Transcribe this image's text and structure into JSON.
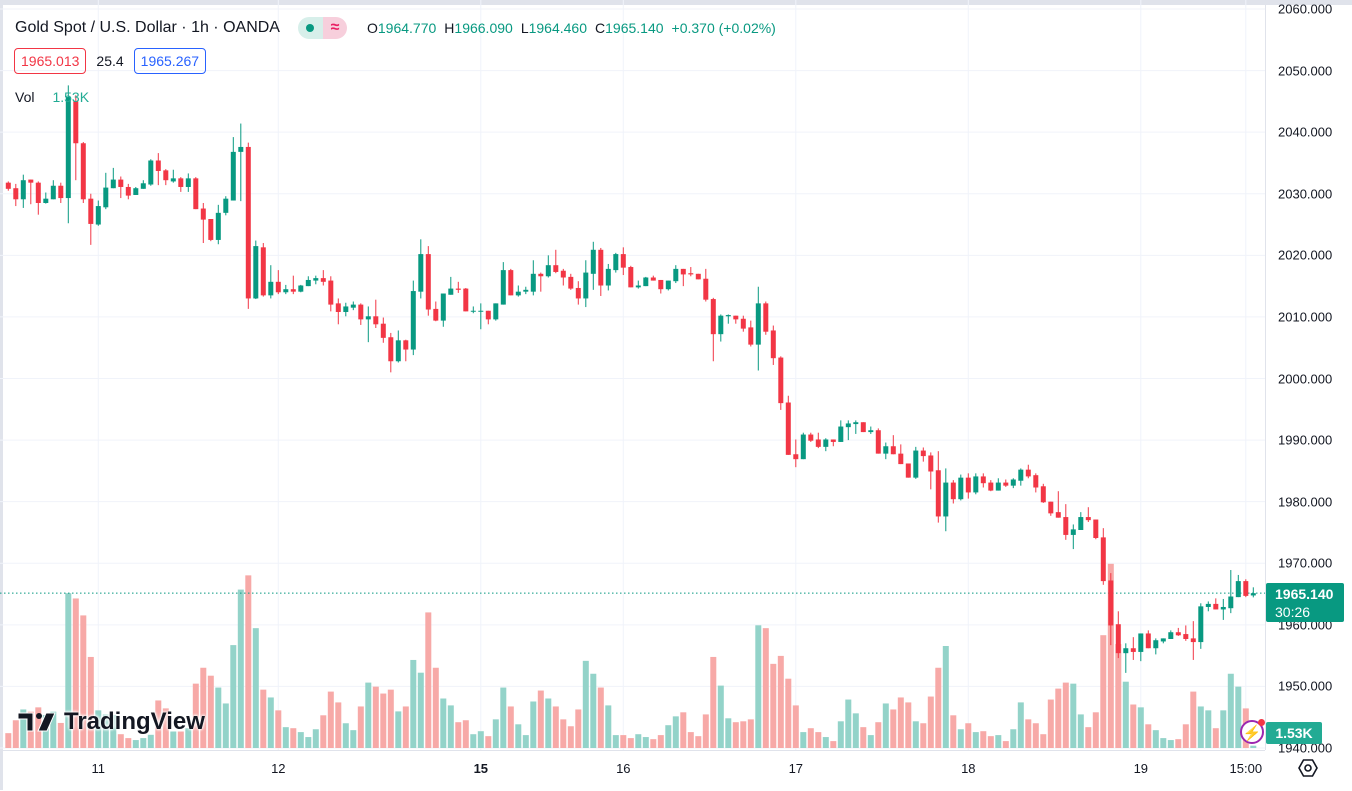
{
  "legend": {
    "title": "Gold Spot / U.S. Dollar · 1h · OANDA",
    "ohlc": {
      "o_key": "O",
      "o": "1964.770",
      "h_key": "H",
      "h": "1966.090",
      "l_key": "L",
      "l": "1964.460",
      "c_key": "C",
      "c": "1965.140",
      "change": "+0.370 (+0.02%)"
    },
    "sell_price": "1965.013",
    "spread": "25.4",
    "buy_price": "1965.267",
    "vol_label": "Vol",
    "vol_value": "1.53K"
  },
  "price_tag": {
    "price": "1965.140",
    "countdown": "30:26"
  },
  "volume_tag": "1.53K",
  "logo": "TradingView",
  "colors": {
    "up": "#089981",
    "down": "#f23645",
    "vol_up": "#93d3c9",
    "vol_down": "#f7a9a7",
    "grid": "#f0f3fa",
    "last_price": "#089981"
  },
  "icons": [
    "market-status-dot-icon",
    "data-delay-icon",
    "lightning-icon",
    "settings-gear-icon",
    "tradingview-logo-icon"
  ],
  "chart_data": {
    "type": "candlestick",
    "symbol": "Gold Spot / U.S. Dollar",
    "interval": "1h",
    "ylim": [
      1940,
      2060
    ],
    "y_tick_labels": [
      "2060.000",
      "2050.000",
      "2040.000",
      "2030.000",
      "2020.000",
      "2010.000",
      "2000.000",
      "1990.000",
      "1980.000",
      "1970.000",
      "1960.000",
      "1950.000",
      "1940.000"
    ],
    "x_tick_labels": [
      {
        "label": "11",
        "index": 12,
        "bold": false
      },
      {
        "label": "12",
        "index": 36,
        "bold": false
      },
      {
        "label": "15",
        "index": 63,
        "bold": true
      },
      {
        "label": "16",
        "index": 82,
        "bold": false
      },
      {
        "label": "17",
        "index": 105,
        "bold": false
      },
      {
        "label": "18",
        "index": 128,
        "bold": false
      },
      {
        "label": "19",
        "index": 151,
        "bold": false
      },
      {
        "label": "15:00",
        "index": 165,
        "bold": false
      }
    ],
    "last_price": 1965.14,
    "grid": true,
    "ohlc": [
      [
        2031.8,
        2032.0,
        2030.5,
        2030.8
      ],
      [
        2030.9,
        2031.6,
        2028.0,
        2029.1
      ],
      [
        2029.1,
        2033.1,
        2027.7,
        2032.2
      ],
      [
        2032.3,
        2032.3,
        2028.3,
        2031.8
      ],
      [
        2031.8,
        2032.0,
        2026.6,
        2028.5
      ],
      [
        2028.5,
        2030.2,
        2028.4,
        2029.2
      ],
      [
        2029.1,
        2032.2,
        2029.1,
        2031.3
      ],
      [
        2031.3,
        2031.8,
        2028.5,
        2029.3
      ],
      [
        2029.3,
        2047.6,
        2025.2,
        2045.7
      ],
      [
        2045.0,
        2046.0,
        2032.2,
        2038.2
      ],
      [
        2038.2,
        2038.4,
        2028.5,
        2029.1
      ],
      [
        2029.2,
        2030.0,
        2021.7,
        2025.1
      ],
      [
        2025.0,
        2028.9,
        2024.8,
        2028.0
      ],
      [
        2027.8,
        2033.4,
        2027.5,
        2031.0
      ],
      [
        2030.9,
        2034.2,
        2030.9,
        2032.3
      ],
      [
        2032.3,
        2032.8,
        2029.3,
        2031.1
      ],
      [
        2031.1,
        2031.6,
        2029.1,
        2029.7
      ],
      [
        2029.8,
        2031.1,
        2029.8,
        2030.9
      ],
      [
        2030.8,
        2032.2,
        2030.8,
        2031.7
      ],
      [
        2031.5,
        2035.6,
        2031.3,
        2035.4
      ],
      [
        2035.4,
        2036.6,
        2031.4,
        2033.7
      ],
      [
        2033.8,
        2034.0,
        2031.4,
        2032.2
      ],
      [
        2032.0,
        2033.9,
        2031.8,
        2032.5
      ],
      [
        2032.5,
        2032.7,
        2030.3,
        2031.1
      ],
      [
        2031.1,
        2033.3,
        2030.3,
        2032.5
      ],
      [
        2032.5,
        2032.7,
        2027.5,
        2027.5
      ],
      [
        2027.6,
        2028.5,
        2022.0,
        2025.8
      ],
      [
        2025.9,
        2025.9,
        2022.3,
        2022.5
      ],
      [
        2022.5,
        2028.2,
        2021.8,
        2026.9
      ],
      [
        2026.9,
        2029.6,
        2026.5,
        2029.2
      ],
      [
        2028.9,
        2039.2,
        2028.9,
        2036.8
      ],
      [
        2036.8,
        2041.4,
        2028.8,
        2037.6
      ],
      [
        2037.6,
        2038.3,
        2011.3,
        2013.0
      ],
      [
        2013.0,
        2022.4,
        2012.9,
        2021.5
      ],
      [
        2021.3,
        2022.0,
        2013.3,
        2013.5
      ],
      [
        2013.5,
        2018.4,
        2013.0,
        2015.7
      ],
      [
        2015.7,
        2017.6,
        2013.7,
        2014.0
      ],
      [
        2014.0,
        2015.2,
        2013.7,
        2014.5
      ],
      [
        2014.5,
        2016.7,
        2013.7,
        2014.1
      ],
      [
        2014.1,
        2015.2,
        2014.0,
        2015.1
      ],
      [
        2015.0,
        2016.6,
        2015.0,
        2016.0
      ],
      [
        2015.9,
        2016.7,
        2015.3,
        2016.3
      ],
      [
        2016.3,
        2017.6,
        2015.1,
        2015.7
      ],
      [
        2015.9,
        2016.6,
        2010.9,
        2012.0
      ],
      [
        2012.2,
        2013.0,
        2008.8,
        2010.8
      ],
      [
        2010.8,
        2012.3,
        2010.1,
        2011.7
      ],
      [
        2011.5,
        2012.5,
        2011.1,
        2012.0
      ],
      [
        2012.0,
        2012.2,
        2008.7,
        2009.6
      ],
      [
        2009.6,
        2011.7,
        2005.9,
        2010.1
      ],
      [
        2010.1,
        2012.8,
        2008.2,
        2008.8
      ],
      [
        2008.9,
        2009.9,
        2005.8,
        2006.6
      ],
      [
        2006.7,
        2007.4,
        2001.0,
        2002.8
      ],
      [
        2002.8,
        2007.8,
        2002.6,
        2006.2
      ],
      [
        2006.2,
        2006.3,
        2002.8,
        2004.7
      ],
      [
        2004.7,
        2015.9,
        2003.8,
        2014.2
      ],
      [
        2014.1,
        2022.6,
        2013.0,
        2020.2
      ],
      [
        2020.2,
        2021.5,
        2010.2,
        2011.2
      ],
      [
        2011.3,
        2012.5,
        2009.3,
        2009.4
      ],
      [
        2009.4,
        2013.8,
        2008.4,
        2013.8
      ],
      [
        2013.6,
        2016.5,
        2013.6,
        2014.6
      ],
      [
        2014.6,
        2015.7,
        2013.9,
        2014.4
      ],
      [
        2014.6,
        2014.7,
        2010.9,
        2010.9
      ],
      [
        2010.9,
        2011.7,
        2010.6,
        2011.0
      ],
      [
        2011.0,
        2012.2,
        2008.0,
        2011.0
      ],
      [
        2011.0,
        2011.0,
        2008.8,
        2009.6
      ],
      [
        2009.6,
        2012.2,
        2009.4,
        2012.2
      ],
      [
        2012.0,
        2018.9,
        2012.0,
        2017.6
      ],
      [
        2017.6,
        2017.8,
        2013.5,
        2013.5
      ],
      [
        2013.5,
        2015.1,
        2013.3,
        2014.1
      ],
      [
        2014.1,
        2014.9,
        2013.7,
        2014.4
      ],
      [
        2014.1,
        2019.2,
        2013.5,
        2017.0
      ],
      [
        2017.0,
        2017.2,
        2014.1,
        2016.6
      ],
      [
        2016.6,
        2020.0,
        2016.4,
        2018.4
      ],
      [
        2018.4,
        2020.9,
        2017.1,
        2017.3
      ],
      [
        2017.5,
        2017.8,
        2015.1,
        2016.4
      ],
      [
        2016.5,
        2017.0,
        2014.4,
        2014.6
      ],
      [
        2014.7,
        2015.8,
        2012.0,
        2013.0
      ],
      [
        2013.0,
        2019.2,
        2011.6,
        2017.2
      ],
      [
        2017.0,
        2022.2,
        2014.4,
        2020.9
      ],
      [
        2020.9,
        2021.2,
        2013.4,
        2015.1
      ],
      [
        2015.1,
        2018.6,
        2014.3,
        2017.8
      ],
      [
        2017.6,
        2020.4,
        2017.2,
        2020.2
      ],
      [
        2020.2,
        2021.3,
        2016.8,
        2018.0
      ],
      [
        2018.1,
        2018.3,
        2014.8,
        2014.8
      ],
      [
        2014.8,
        2015.9,
        2014.6,
        2015.1
      ],
      [
        2015.0,
        2016.5,
        2015.0,
        2016.4
      ],
      [
        2016.4,
        2016.7,
        2015.9,
        2015.9
      ],
      [
        2016.0,
        2016.0,
        2013.8,
        2014.5
      ],
      [
        2014.5,
        2015.9,
        2014.3,
        2015.9
      ],
      [
        2015.8,
        2018.4,
        2015.5,
        2017.8
      ],
      [
        2017.8,
        2017.8,
        2015.0,
        2016.9
      ],
      [
        2017.1,
        2018.1,
        2016.6,
        2016.9
      ],
      [
        2017.0,
        2017.0,
        2016.1,
        2016.1
      ],
      [
        2016.2,
        2017.8,
        2012.5,
        2012.8
      ],
      [
        2012.9,
        2013.1,
        2002.8,
        2007.2
      ],
      [
        2007.2,
        2010.4,
        2006.0,
        2010.2
      ],
      [
        2010.1,
        2010.4,
        2008.9,
        2010.3
      ],
      [
        2010.2,
        2010.2,
        2008.9,
        2009.6
      ],
      [
        2009.7,
        2010.2,
        2007.6,
        2008.1
      ],
      [
        2008.3,
        2009.4,
        2005.2,
        2005.5
      ],
      [
        2005.5,
        2014.9,
        2001.3,
        2012.2
      ],
      [
        2012.2,
        2012.5,
        2007.1,
        2007.6
      ],
      [
        2007.8,
        2008.6,
        2002.2,
        2003.3
      ],
      [
        2003.4,
        2003.6,
        1994.9,
        1996.0
      ],
      [
        1996.1,
        1997.2,
        1987.6,
        1987.6
      ],
      [
        1987.7,
        1990.1,
        1985.6,
        1986.9
      ],
      [
        1986.9,
        1991.2,
        1986.9,
        1990.9
      ],
      [
        1990.9,
        1991.2,
        1989.7,
        1989.9
      ],
      [
        1990.1,
        1991.2,
        1988.7,
        1988.9
      ],
      [
        1988.9,
        1990.3,
        1988.2,
        1990.1
      ],
      [
        1990.1,
        1990.1,
        1989.0,
        1989.7
      ],
      [
        1989.7,
        1993.2,
        1989.7,
        1992.2
      ],
      [
        1992.1,
        1993.2,
        1990.0,
        1992.7
      ],
      [
        1992.6,
        1993.2,
        1991.0,
        1992.9
      ],
      [
        1992.9,
        1992.9,
        1991.3,
        1991.3
      ],
      [
        1991.3,
        1992.2,
        1991.0,
        1991.6
      ],
      [
        1991.6,
        1991.9,
        1987.8,
        1987.8
      ],
      [
        1987.8,
        1989.6,
        1986.9,
        1989.0
      ],
      [
        1989.0,
        1990.8,
        1987.7,
        1987.7
      ],
      [
        1987.8,
        1989.3,
        1986.1,
        1986.1
      ],
      [
        1986.2,
        1986.2,
        1983.9,
        1983.9
      ],
      [
        1983.9,
        1988.9,
        1983.7,
        1988.3
      ],
      [
        1988.3,
        1988.8,
        1986.5,
        1987.4
      ],
      [
        1987.5,
        1988.0,
        1982.0,
        1984.9
      ],
      [
        1985.1,
        1988.2,
        1976.6,
        1977.6
      ],
      [
        1977.6,
        1985.4,
        1975.2,
        1983.1
      ],
      [
        1983.1,
        1983.5,
        1979.7,
        1980.4
      ],
      [
        1980.4,
        1984.4,
        1980.2,
        1983.9
      ],
      [
        1983.9,
        1984.6,
        1980.5,
        1981.5
      ],
      [
        1981.5,
        1984.6,
        1981.2,
        1984.1
      ],
      [
        1984.1,
        1984.6,
        1982.3,
        1983.0
      ],
      [
        1983.1,
        1983.5,
        1981.7,
        1981.8
      ],
      [
        1981.8,
        1983.8,
        1981.8,
        1983.1
      ],
      [
        1983.1,
        1983.6,
        1982.4,
        1982.6
      ],
      [
        1982.6,
        1983.8,
        1982.2,
        1983.6
      ],
      [
        1983.4,
        1985.4,
        1982.6,
        1985.2
      ],
      [
        1985.2,
        1986.0,
        1983.8,
        1984.1
      ],
      [
        1984.3,
        1984.6,
        1981.5,
        1982.3
      ],
      [
        1982.5,
        1982.9,
        1979.8,
        1979.9
      ],
      [
        1980.0,
        1980.0,
        1977.7,
        1978.1
      ],
      [
        1978.3,
        1981.7,
        1977.4,
        1977.4
      ],
      [
        1977.5,
        1979.6,
        1973.8,
        1974.6
      ],
      [
        1974.6,
        1976.3,
        1972.3,
        1975.5
      ],
      [
        1975.4,
        1978.3,
        1975.4,
        1977.5
      ],
      [
        1977.5,
        1979.1,
        1976.7,
        1977.0
      ],
      [
        1977.1,
        1977.1,
        1973.9,
        1974.1
      ],
      [
        1974.2,
        1975.7,
        1966.5,
        1967.1
      ],
      [
        1967.2,
        1968.4,
        1956.7,
        1959.9
      ],
      [
        1960.1,
        1962.2,
        1954.6,
        1955.4
      ],
      [
        1955.4,
        1957.0,
        1952.2,
        1956.2
      ],
      [
        1956.2,
        1958.0,
        1954.3,
        1955.6
      ],
      [
        1955.6,
        1958.6,
        1954.1,
        1958.6
      ],
      [
        1958.6,
        1959.1,
        1956.2,
        1956.2
      ],
      [
        1956.2,
        1957.8,
        1955.2,
        1957.5
      ],
      [
        1957.3,
        1957.8,
        1957.0,
        1957.8
      ],
      [
        1957.7,
        1959.1,
        1957.7,
        1958.8
      ],
      [
        1958.8,
        1959.5,
        1958.2,
        1958.3
      ],
      [
        1958.5,
        1959.9,
        1957.4,
        1957.7
      ],
      [
        1957.8,
        1960.6,
        1954.3,
        1957.2
      ],
      [
        1957.2,
        1963.5,
        1956.1,
        1963.0
      ],
      [
        1962.9,
        1963.8,
        1962.2,
        1963.4
      ],
      [
        1963.4,
        1964.3,
        1962.5,
        1962.5
      ],
      [
        1962.5,
        1964.2,
        1960.8,
        1962.9
      ],
      [
        1962.7,
        1968.9,
        1961.9,
        1964.6
      ],
      [
        1964.5,
        1968.1,
        1964.5,
        1967.1
      ],
      [
        1967.1,
        1967.4,
        1964.5,
        1964.7
      ],
      [
        1964.77,
        1966.09,
        1964.46,
        1965.14
      ]
    ],
    "volume_k": [
      9.9,
      18.5,
      25.7,
      24.2,
      27.1,
      22.0,
      24.2,
      16.7,
      103.2,
      99.7,
      88.4,
      60.7,
      25.1,
      22.4,
      22.0,
      9.2,
      6.6,
      5.3,
      6.6,
      8.8,
      31.7,
      26.4,
      11.0,
      11.0,
      13.2,
      42.9,
      53.5,
      48.2,
      40.3,
      29.7,
      68.6,
      105.6,
      115.1,
      79.9,
      38.9,
      33.7,
      25.1,
      13.9,
      13.2,
      10.6,
      7.3,
      12.5,
      21.8,
      37.6,
      30.4,
      16.5,
      11.9,
      27.7,
      43.6,
      40.9,
      36.3,
      38.9,
      24.4,
      27.7,
      58.7,
      50.2,
      90.4,
      53.5,
      33.0,
      28.4,
      17.2,
      18.5,
      9.2,
      11.2,
      7.9,
      19.1,
      40.3,
      27.7,
      15.8,
      8.6,
      31.0,
      38.3,
      33.0,
      27.7,
      19.1,
      14.5,
      25.7,
      58.1,
      49.5,
      40.3,
      28.4,
      8.6,
      8.6,
      6.6,
      9.2,
      7.3,
      5.9,
      8.6,
      15.2,
      21.1,
      23.8,
      10.6,
      7.9,
      22.4,
      60.7,
      41.6,
      19.8,
      17.2,
      17.8,
      19.1,
      81.8,
      79.9,
      56.1,
      61.4,
      46.2,
      28.4,
      10.6,
      13.2,
      10.6,
      7.3,
      4.6,
      17.8,
      32.3,
      23.1,
      13.9,
      8.6,
      17.2,
      29.7,
      25.7,
      33.7,
      30.4,
      17.8,
      16.5,
      34.3,
      53.5,
      68.0,
      21.8,
      12.5,
      16.5,
      10.6,
      11.2,
      7.9,
      8.6,
      4.6,
      12.5,
      30.4,
      19.1,
      16.5,
      9.2,
      32.3,
      39.6,
      43.6,
      42.9,
      22.4,
      13.9,
      23.8,
      75.2,
      122.8,
      69.3,
      44.2,
      29.0,
      27.1,
      15.8,
      11.9,
      6.6,
      5.3,
      5.9,
      15.8,
      37.6,
      27.7,
      25.1,
      13.2,
      25.1,
      49.5,
      40.9,
      26.4,
      1.53
    ]
  }
}
